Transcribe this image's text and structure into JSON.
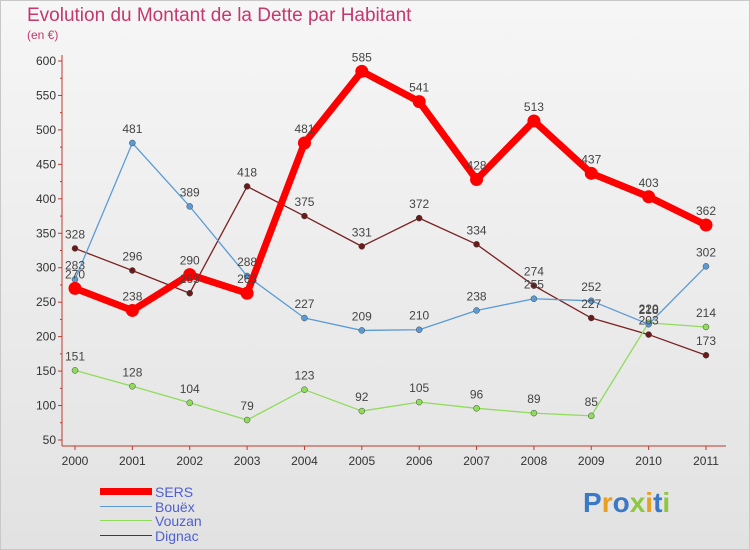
{
  "title": "Evolution du Montant de la Dette par Habitant",
  "unit": "(en €)",
  "logo": "Proxiti",
  "chart_data": {
    "type": "line",
    "title": "Evolution du Montant de la Dette par Habitant",
    "ylabel": "(en €)",
    "categories": [
      "2000",
      "2001",
      "2002",
      "2003",
      "2004",
      "2005",
      "2006",
      "2007",
      "2008",
      "2009",
      "2010",
      "2011"
    ],
    "ylim": [
      50,
      600
    ],
    "yticks": [
      50,
      100,
      150,
      200,
      250,
      300,
      350,
      400,
      450,
      500,
      550,
      600
    ],
    "grid": false,
    "legend_position": "bottom-left",
    "series": [
      {
        "name": "SERS",
        "color": "#ff0000",
        "values": [
          270,
          238,
          290,
          263,
          481,
          585,
          541,
          428,
          513,
          437,
          403,
          362
        ]
      },
      {
        "name": "Bouëx",
        "color": "#5b9bd5",
        "values": [
          283,
          481,
          389,
          288,
          227,
          209,
          210,
          238,
          255,
          252,
          218,
          302
        ]
      },
      {
        "name": "Vouzan",
        "color": "#8fdc5a",
        "values": [
          151,
          128,
          104,
          79,
          123,
          92,
          105,
          96,
          89,
          85,
          220,
          214
        ]
      },
      {
        "name": "Dignac",
        "color": "#7b2020",
        "values": [
          328,
          296,
          263,
          418,
          375,
          331,
          372,
          334,
          274,
          227,
          203,
          173
        ]
      }
    ],
    "data_labels": [
      [
        "270",
        "238",
        "290",
        "263",
        "481",
        "585",
        "541",
        "428",
        "513",
        "437",
        "403",
        "362"
      ],
      [
        "283",
        "481",
        "389",
        "288",
        "227",
        "209",
        "210",
        "238",
        "255",
        "252",
        "218",
        "302"
      ],
      [
        "151",
        "128",
        "104",
        "79",
        "123",
        "92",
        "105",
        "96",
        "89",
        "85",
        "220",
        "214"
      ],
      [
        "328",
        "296",
        "263",
        "418",
        "375",
        "331",
        "372",
        "334",
        "274",
        "227",
        "203",
        "173"
      ]
    ]
  }
}
